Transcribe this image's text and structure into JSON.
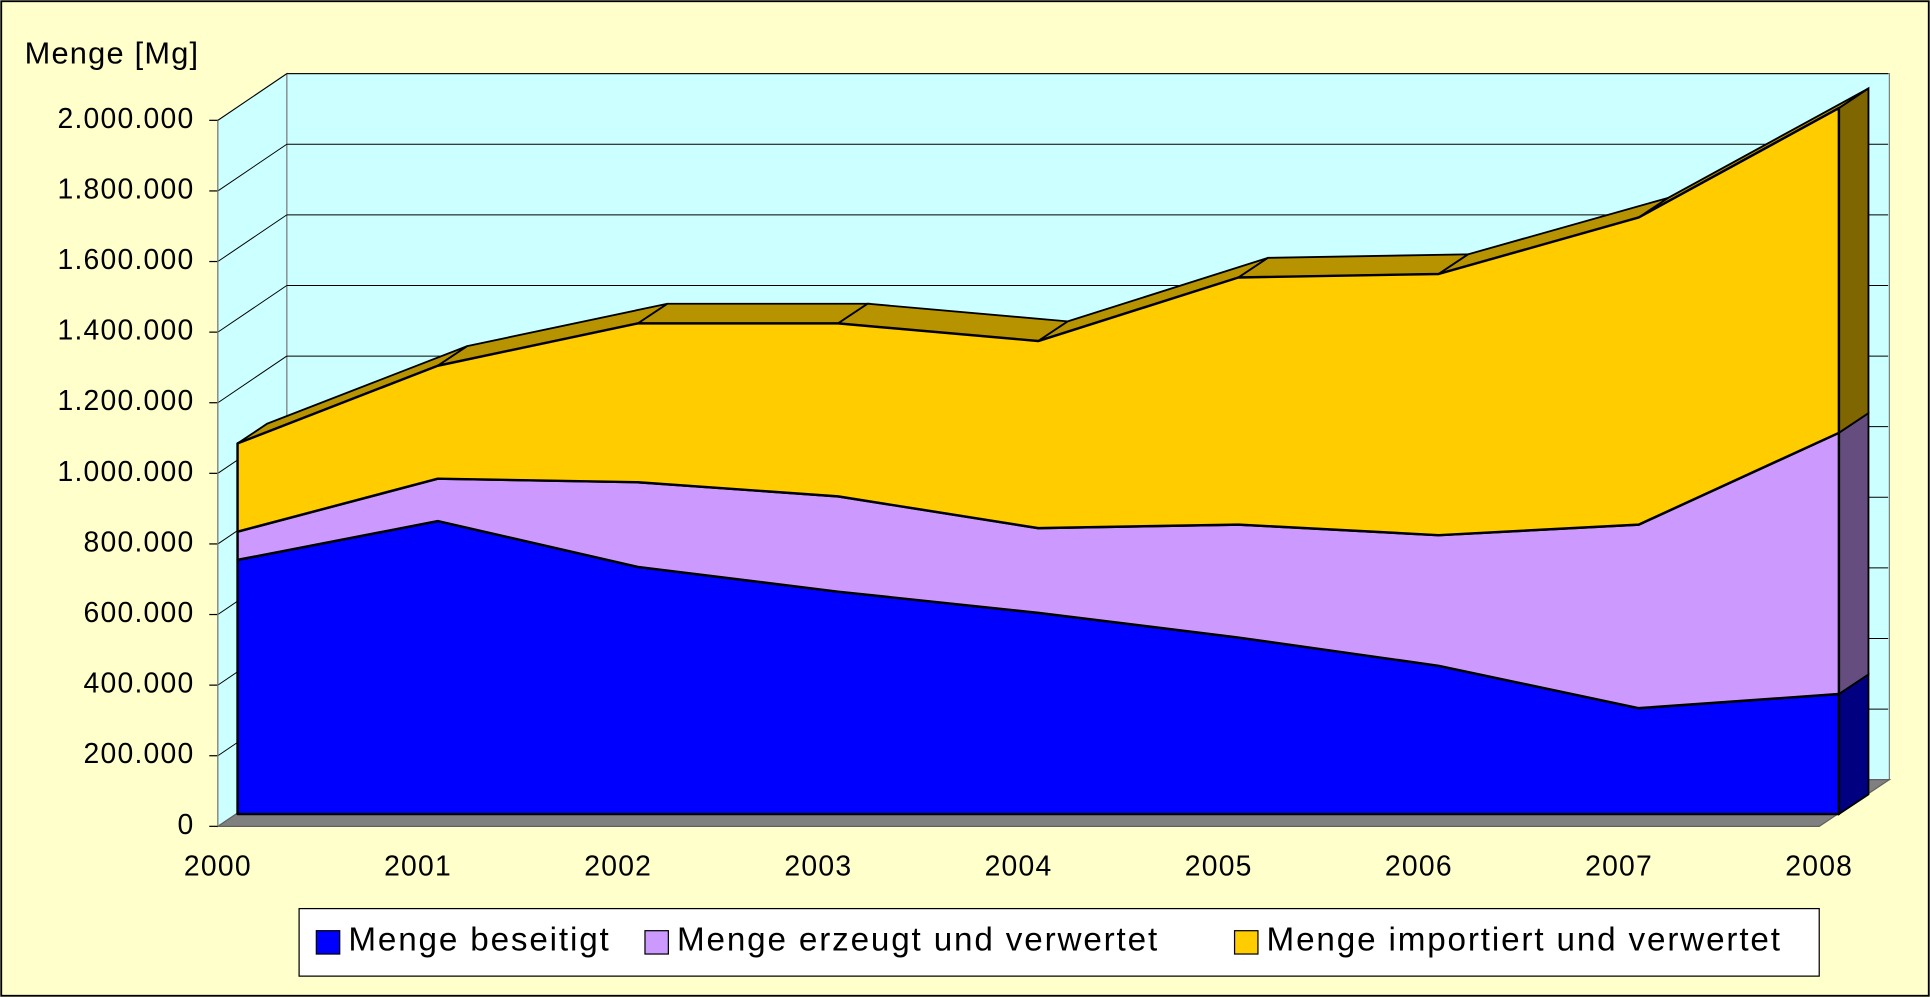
{
  "chart_data": {
    "type": "area",
    "stacked": true,
    "three_d": true,
    "y_label": "Menge [Mg]",
    "categories": [
      "2000",
      "2001",
      "2002",
      "2003",
      "2004",
      "2005",
      "2006",
      "2007",
      "2008"
    ],
    "series": [
      {
        "name": "Menge beseitigt",
        "color": "#0000ff",
        "values": [
          720000,
          830000,
          700000,
          630000,
          570000,
          500000,
          420000,
          300000,
          340000
        ]
      },
      {
        "name": "Menge erzeugt und verwertet",
        "color": "#cc99ff",
        "values": [
          80000,
          120000,
          240000,
          270000,
          240000,
          320000,
          370000,
          520000,
          740000
        ]
      },
      {
        "name": "Menge importiert und verwertet",
        "color": "#ffcc00",
        "values": [
          250000,
          320000,
          450000,
          490000,
          530000,
          700000,
          740000,
          870000,
          920000
        ]
      }
    ],
    "ylim": [
      0,
      2000000
    ],
    "yticks": [
      0,
      {
        "value": 200000,
        "label": "200.000"
      },
      {
        "value": 400000,
        "label": "400.000"
      },
      {
        "value": 600000,
        "label": "600.000"
      },
      {
        "value": 800000,
        "label": "800.000"
      },
      {
        "value": 1000000,
        "label": "1.000.000"
      },
      {
        "value": 1200000,
        "label": "1.200.000"
      },
      {
        "value": 1400000,
        "label": "1.400.000"
      },
      {
        "value": 1600000,
        "label": "1.600.000"
      },
      {
        "value": 1800000,
        "label": "1.800.000"
      },
      {
        "value": 2000000,
        "label": "2.000.000"
      }
    ],
    "grid": true,
    "legend": "bottom"
  }
}
